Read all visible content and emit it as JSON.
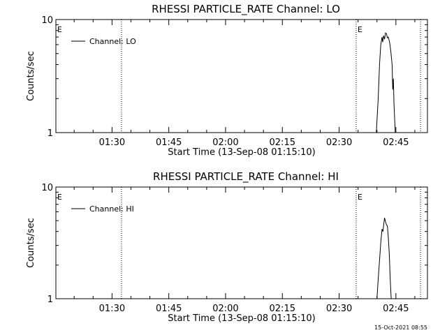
{
  "chart_data": [
    {
      "type": "line",
      "title": "RHESSI PARTICLE_RATE Channel: LO",
      "xlabel": "Start Time (13-Sep-08 01:15:10)",
      "ylabel": "Counts/sec",
      "x_ticks": [
        "01:30",
        "01:45",
        "02:00",
        "02:15",
        "02:30",
        "02:45"
      ],
      "y_ticks": [
        "1",
        "10"
      ],
      "y_scale": "log",
      "ylim": [
        1,
        10
      ],
      "xlim": [
        "01:15:10",
        "02:53:20"
      ],
      "series": [
        {
          "name": "Channel: LO",
          "x": [
            "02:39:50",
            "02:40:20",
            "02:40:40",
            "02:41:00",
            "02:41:20",
            "02:41:30",
            "02:41:45",
            "02:42:00",
            "02:42:15",
            "02:42:30",
            "02:42:45",
            "02:43:00",
            "02:43:20",
            "02:43:40",
            "02:44:00",
            "02:44:10",
            "02:44:20",
            "02:44:30",
            "02:44:50"
          ],
          "values": [
            1.0,
            2.0,
            4.0,
            6.0,
            7.0,
            6.3,
            7.2,
            6.7,
            7.6,
            7.5,
            6.9,
            7.0,
            6.3,
            5.2,
            4.0,
            2.4,
            3.0,
            1.8,
            1.0
          ]
        }
      ],
      "vertical_lines": [
        "01:32:30",
        "02:34:30",
        "02:51:30"
      ],
      "markers": [
        {
          "label": "E",
          "x": "01:15:10"
        },
        {
          "label": "E",
          "x": "02:34:30"
        }
      ],
      "legend_position": "top-left"
    },
    {
      "type": "line",
      "title": "RHESSI PARTICLE_RATE Channel: HI",
      "xlabel": "Start Time (13-Sep-08 01:15:10)",
      "ylabel": "Counts/sec",
      "x_ticks": [
        "01:30",
        "01:45",
        "02:00",
        "02:15",
        "02:30",
        "02:45"
      ],
      "y_ticks": [
        "1",
        "10"
      ],
      "y_scale": "log",
      "ylim": [
        1,
        10
      ],
      "xlim": [
        "01:15:10",
        "02:53:20"
      ],
      "series": [
        {
          "name": "Channel: HI",
          "x": [
            "02:40:00",
            "02:40:20",
            "02:40:40",
            "02:41:00",
            "02:41:20",
            "02:41:35",
            "02:41:50",
            "02:42:00",
            "02:42:15",
            "02:42:30",
            "02:42:45",
            "02:43:00",
            "02:43:15",
            "02:43:30",
            "02:43:45"
          ],
          "values": [
            1.0,
            1.5,
            2.2,
            3.2,
            4.2,
            4.0,
            4.8,
            5.3,
            4.9,
            4.6,
            4.5,
            3.5,
            2.5,
            1.5,
            1.0
          ]
        }
      ],
      "vertical_lines": [
        "01:32:30",
        "02:34:30",
        "02:51:30"
      ],
      "markers": [
        {
          "label": "E",
          "x": "01:15:10"
        },
        {
          "label": "E",
          "x": "02:34:30"
        }
      ],
      "legend_position": "top-left"
    }
  ],
  "footer": {
    "timestamp": "15-Oct-2021 08:55"
  },
  "colors": {
    "background": "#ffffff",
    "foreground": "#000000"
  }
}
